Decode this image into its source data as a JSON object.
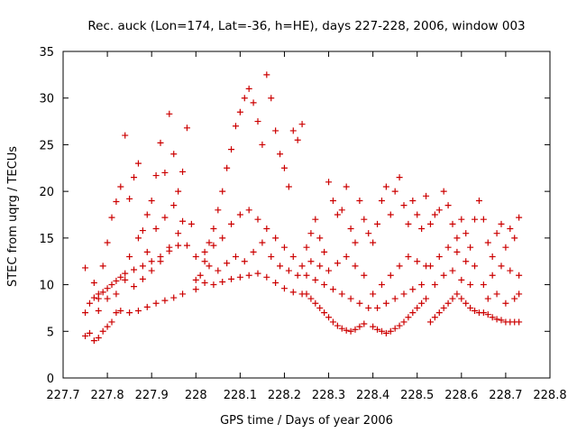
{
  "chart_data": {
    "type": "scatter",
    "title": "Rec. auck (Lon=174, Lat=-36, h=HE), days 227-228, 2006, window 003",
    "xlabel": "GPS time / Days of year 2006",
    "ylabel": "STEC from uqrg / TECUs",
    "xlim": [
      227.7,
      228.8
    ],
    "ylim": [
      0,
      35
    ],
    "x_ticks": [
      "227.7",
      "227.8",
      "227.9",
      "228",
      "228.1",
      "228.2",
      "228.3",
      "228.4",
      "228.5",
      "228.6",
      "228.7",
      "228.8"
    ],
    "y_ticks": [
      "0",
      "5",
      "10",
      "15",
      "20",
      "25",
      "30",
      "35"
    ],
    "grid": false,
    "marker": "+",
    "marker_color": "#cc0000",
    "series": [
      {
        "name": "",
        "points": [
          [
            227.75,
            4.5
          ],
          [
            227.76,
            4.8
          ],
          [
            227.77,
            4.0
          ],
          [
            227.78,
            4.3
          ],
          [
            227.79,
            5.0
          ],
          [
            227.8,
            5.5
          ],
          [
            227.81,
            6.0
          ],
          [
            227.82,
            7.0
          ],
          [
            227.83,
            7.2
          ],
          [
            227.85,
            7.0
          ],
          [
            227.87,
            7.2
          ],
          [
            227.89,
            7.6
          ],
          [
            227.91,
            8.0
          ],
          [
            227.93,
            8.3
          ],
          [
            227.95,
            8.6
          ],
          [
            227.97,
            9.0
          ],
          [
            227.75,
            7.0
          ],
          [
            227.76,
            8.0
          ],
          [
            227.77,
            8.6
          ],
          [
            227.78,
            9.0
          ],
          [
            227.79,
            9.2
          ],
          [
            227.8,
            9.6
          ],
          [
            227.81,
            10.0
          ],
          [
            227.82,
            10.4
          ],
          [
            227.83,
            10.8
          ],
          [
            227.84,
            11.2
          ],
          [
            227.86,
            11.6
          ],
          [
            227.88,
            12.0
          ],
          [
            227.9,
            12.5
          ],
          [
            227.92,
            13.0
          ],
          [
            227.94,
            13.6
          ],
          [
            227.96,
            14.2
          ],
          [
            227.75,
            11.8
          ],
          [
            227.77,
            10.2
          ],
          [
            227.78,
            8.5
          ],
          [
            227.79,
            12.0
          ],
          [
            227.8,
            14.5
          ],
          [
            227.81,
            17.2
          ],
          [
            227.82,
            18.9
          ],
          [
            227.83,
            20.5
          ],
          [
            227.84,
            26.0
          ],
          [
            227.85,
            19.2
          ],
          [
            227.86,
            21.5
          ],
          [
            227.87,
            23.0
          ],
          [
            227.88,
            15.8
          ],
          [
            227.89,
            17.5
          ],
          [
            227.9,
            19.0
          ],
          [
            227.91,
            21.7
          ],
          [
            227.92,
            25.2
          ],
          [
            227.93,
            22.0
          ],
          [
            227.94,
            28.3
          ],
          [
            227.95,
            24.0
          ],
          [
            227.96,
            20.0
          ],
          [
            227.97,
            22.1
          ],
          [
            227.98,
            26.8
          ],
          [
            227.99,
            16.5
          ],
          [
            227.78,
            7.2
          ],
          [
            227.8,
            8.5
          ],
          [
            227.82,
            9.0
          ],
          [
            227.84,
            10.5
          ],
          [
            227.86,
            9.8
          ],
          [
            227.88,
            10.6
          ],
          [
            227.9,
            11.5
          ],
          [
            227.92,
            12.5
          ],
          [
            227.94,
            14.0
          ],
          [
            227.96,
            15.5
          ],
          [
            227.98,
            14.2
          ],
          [
            227.85,
            13.0
          ],
          [
            227.87,
            15.0
          ],
          [
            227.89,
            13.5
          ],
          [
            227.91,
            16.0
          ],
          [
            227.93,
            17.2
          ],
          [
            227.95,
            18.5
          ],
          [
            227.97,
            16.8
          ],
          [
            228.0,
            9.5
          ],
          [
            228.01,
            11.0
          ],
          [
            228.02,
            12.5
          ],
          [
            228.03,
            14.5
          ],
          [
            228.04,
            16.0
          ],
          [
            228.05,
            18.0
          ],
          [
            228.06,
            20.0
          ],
          [
            228.07,
            22.5
          ],
          [
            228.08,
            24.5
          ],
          [
            228.09,
            27.0
          ],
          [
            228.1,
            28.5
          ],
          [
            228.11,
            30.0
          ],
          [
            228.12,
            31.0
          ],
          [
            228.13,
            29.5
          ],
          [
            228.14,
            27.5
          ],
          [
            228.15,
            25.0
          ],
          [
            228.16,
            32.5
          ],
          [
            228.17,
            30.0
          ],
          [
            228.18,
            26.5
          ],
          [
            228.19,
            24.0
          ],
          [
            228.2,
            22.5
          ],
          [
            228.21,
            20.5
          ],
          [
            228.22,
            26.5
          ],
          [
            228.23,
            25.5
          ],
          [
            228.24,
            27.2
          ],
          [
            228.0,
            13.0
          ],
          [
            228.02,
            13.5
          ],
          [
            228.04,
            14.2
          ],
          [
            228.06,
            15.0
          ],
          [
            228.08,
            16.5
          ],
          [
            228.1,
            17.5
          ],
          [
            228.12,
            18.0
          ],
          [
            228.14,
            17.0
          ],
          [
            228.16,
            16.0
          ],
          [
            228.18,
            15.0
          ],
          [
            228.2,
            14.0
          ],
          [
            228.22,
            13.0
          ],
          [
            228.24,
            12.0
          ],
          [
            228.0,
            10.5
          ],
          [
            228.02,
            10.2
          ],
          [
            228.04,
            10.0
          ],
          [
            228.06,
            10.3
          ],
          [
            228.08,
            10.6
          ],
          [
            228.1,
            10.8
          ],
          [
            228.12,
            11.0
          ],
          [
            228.14,
            11.2
          ],
          [
            228.16,
            10.8
          ],
          [
            228.18,
            10.2
          ],
          [
            228.2,
            9.6
          ],
          [
            228.22,
            9.2
          ],
          [
            228.24,
            9.0
          ],
          [
            228.03,
            12.0
          ],
          [
            228.05,
            11.5
          ],
          [
            228.07,
            12.3
          ],
          [
            228.09,
            13.0
          ],
          [
            228.11,
            12.5
          ],
          [
            228.13,
            13.5
          ],
          [
            228.15,
            14.5
          ],
          [
            228.17,
            13.0
          ],
          [
            228.19,
            12.0
          ],
          [
            228.21,
            11.5
          ],
          [
            228.23,
            11.0
          ],
          [
            228.25,
            9.0
          ],
          [
            228.26,
            8.5
          ],
          [
            228.27,
            8.0
          ],
          [
            228.28,
            7.5
          ],
          [
            228.29,
            7.0
          ],
          [
            228.3,
            6.5
          ],
          [
            228.31,
            6.0
          ],
          [
            228.32,
            5.6
          ],
          [
            228.33,
            5.3
          ],
          [
            228.34,
            5.1
          ],
          [
            228.35,
            5.0
          ],
          [
            228.36,
            5.2
          ],
          [
            228.37,
            5.5
          ],
          [
            228.38,
            5.8
          ],
          [
            228.25,
            14.0
          ],
          [
            228.26,
            15.5
          ],
          [
            228.27,
            17.0
          ],
          [
            228.28,
            15.0
          ],
          [
            228.29,
            13.5
          ],
          [
            228.3,
            21.0
          ],
          [
            228.31,
            19.0
          ],
          [
            228.32,
            17.5
          ],
          [
            228.33,
            18.0
          ],
          [
            228.34,
            20.5
          ],
          [
            228.35,
            16.0
          ],
          [
            228.36,
            14.5
          ],
          [
            228.37,
            19.0
          ],
          [
            228.38,
            17.0
          ],
          [
            228.39,
            15.5
          ],
          [
            228.25,
            11.0
          ],
          [
            228.27,
            10.5
          ],
          [
            228.29,
            10.0
          ],
          [
            228.31,
            9.5
          ],
          [
            228.33,
            9.0
          ],
          [
            228.35,
            8.5
          ],
          [
            228.37,
            8.0
          ],
          [
            228.39,
            7.5
          ],
          [
            228.26,
            12.5
          ],
          [
            228.28,
            12.0
          ],
          [
            228.3,
            11.5
          ],
          [
            228.32,
            12.3
          ],
          [
            228.34,
            13.0
          ],
          [
            228.36,
            12.0
          ],
          [
            228.38,
            11.0
          ],
          [
            228.4,
            5.5
          ],
          [
            228.41,
            5.2
          ],
          [
            228.42,
            5.0
          ],
          [
            228.43,
            4.8
          ],
          [
            228.44,
            5.0
          ],
          [
            228.45,
            5.3
          ],
          [
            228.46,
            5.6
          ],
          [
            228.47,
            6.0
          ],
          [
            228.48,
            6.5
          ],
          [
            228.49,
            7.0
          ],
          [
            228.5,
            7.5
          ],
          [
            228.51,
            8.0
          ],
          [
            228.52,
            8.5
          ],
          [
            228.4,
            14.5
          ],
          [
            228.41,
            16.5
          ],
          [
            228.42,
            19.0
          ],
          [
            228.43,
            20.5
          ],
          [
            228.44,
            17.5
          ],
          [
            228.45,
            20.0
          ],
          [
            228.46,
            21.5
          ],
          [
            228.47,
            18.5
          ],
          [
            228.48,
            16.5
          ],
          [
            228.49,
            19.0
          ],
          [
            228.5,
            17.5
          ],
          [
            228.51,
            16.0
          ],
          [
            228.52,
            19.5
          ],
          [
            228.4,
            9.0
          ],
          [
            228.42,
            10.0
          ],
          [
            228.44,
            11.0
          ],
          [
            228.46,
            12.0
          ],
          [
            228.48,
            13.0
          ],
          [
            228.5,
            12.5
          ],
          [
            228.52,
            12.0
          ],
          [
            228.41,
            7.5
          ],
          [
            228.43,
            8.0
          ],
          [
            228.45,
            8.5
          ],
          [
            228.47,
            9.0
          ],
          [
            228.49,
            9.5
          ],
          [
            228.51,
            10.0
          ],
          [
            228.53,
            6.0
          ],
          [
            228.54,
            6.5
          ],
          [
            228.55,
            7.0
          ],
          [
            228.56,
            7.5
          ],
          [
            228.57,
            8.0
          ],
          [
            228.58,
            8.5
          ],
          [
            228.59,
            9.0
          ],
          [
            228.6,
            8.5
          ],
          [
            228.61,
            8.0
          ],
          [
            228.62,
            7.5
          ],
          [
            228.63,
            7.2
          ],
          [
            228.64,
            7.0
          ],
          [
            228.53,
            16.5
          ],
          [
            228.54,
            17.5
          ],
          [
            228.55,
            18.0
          ],
          [
            228.56,
            20.0
          ],
          [
            228.57,
            18.5
          ],
          [
            228.58,
            16.5
          ],
          [
            228.59,
            15.0
          ],
          [
            228.6,
            17.0
          ],
          [
            228.61,
            15.5
          ],
          [
            228.62,
            14.0
          ],
          [
            228.63,
            17.0
          ],
          [
            228.64,
            19.0
          ],
          [
            228.53,
            12.0
          ],
          [
            228.55,
            13.0
          ],
          [
            228.57,
            14.0
          ],
          [
            228.59,
            13.5
          ],
          [
            228.61,
            12.5
          ],
          [
            228.63,
            12.0
          ],
          [
            228.54,
            10.0
          ],
          [
            228.56,
            11.0
          ],
          [
            228.58,
            11.5
          ],
          [
            228.6,
            10.5
          ],
          [
            228.62,
            10.0
          ],
          [
            228.65,
            7.0
          ],
          [
            228.66,
            6.8
          ],
          [
            228.67,
            6.5
          ],
          [
            228.68,
            6.3
          ],
          [
            228.69,
            6.2
          ],
          [
            228.7,
            6.0
          ],
          [
            228.71,
            6.0
          ],
          [
            228.72,
            6.0
          ],
          [
            228.73,
            6.0
          ],
          [
            228.65,
            17.0
          ],
          [
            228.66,
            14.5
          ],
          [
            228.67,
            13.0
          ],
          [
            228.68,
            15.5
          ],
          [
            228.69,
            16.5
          ],
          [
            228.7,
            14.0
          ],
          [
            228.71,
            16.0
          ],
          [
            228.72,
            15.0
          ],
          [
            228.73,
            17.2
          ],
          [
            228.65,
            10.0
          ],
          [
            228.67,
            11.0
          ],
          [
            228.69,
            12.0
          ],
          [
            228.71,
            11.5
          ],
          [
            228.73,
            11.0
          ],
          [
            228.66,
            8.5
          ],
          [
            228.68,
            9.0
          ],
          [
            228.7,
            8.0
          ],
          [
            228.72,
            8.5
          ],
          [
            228.73,
            9.0
          ]
        ]
      }
    ]
  }
}
